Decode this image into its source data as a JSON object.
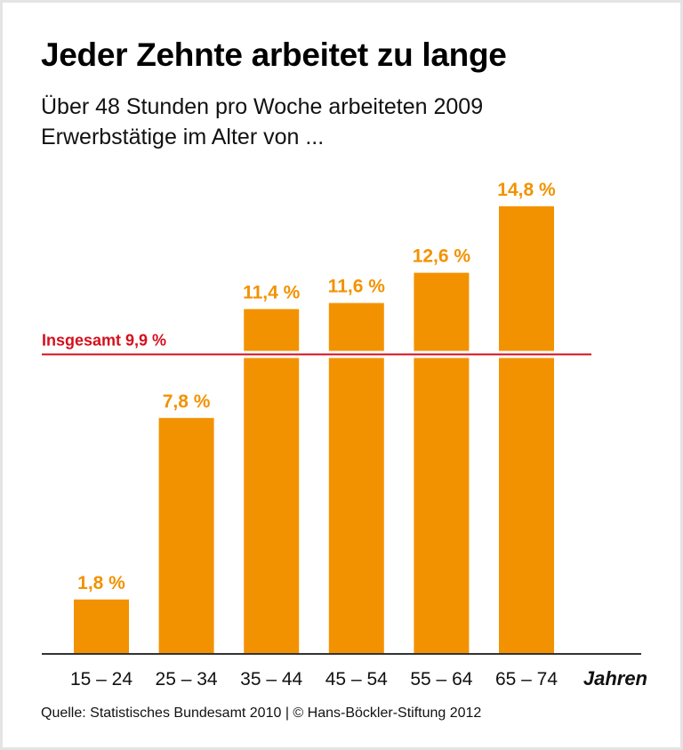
{
  "chart_data": {
    "type": "bar",
    "title": "Jeder Zehnte arbeitet zu lange",
    "subtitle_lines": [
      "Über 48 Stunden pro Woche arbeiteten 2009",
      "Erwerbstätige im Alter von ..."
    ],
    "categories": [
      "15 – 24",
      "25 – 34",
      "35 – 44",
      "45 – 54",
      "55 – 64",
      "65 – 74"
    ],
    "values": [
      1.8,
      7.8,
      11.4,
      11.6,
      12.6,
      14.8
    ],
    "data_labels": [
      "1,8 %",
      "7,8 %",
      "11,4 %",
      "11,6 %",
      "12,6 %",
      "14,8 %"
    ],
    "xlabel": "Jahren",
    "ylabel": "",
    "ylim": [
      0,
      16
    ],
    "grid": false,
    "reference_line": {
      "value": 9.9,
      "label": "Insgesamt 9,9 %"
    },
    "colors": {
      "bar": "#f39200",
      "label": "#f39200",
      "reference": "#d4101e",
      "axis": "#333333"
    }
  },
  "source": "Quelle: Statistisches Bundesamt 2010 | © Hans-Böckler-Stiftung 2012"
}
